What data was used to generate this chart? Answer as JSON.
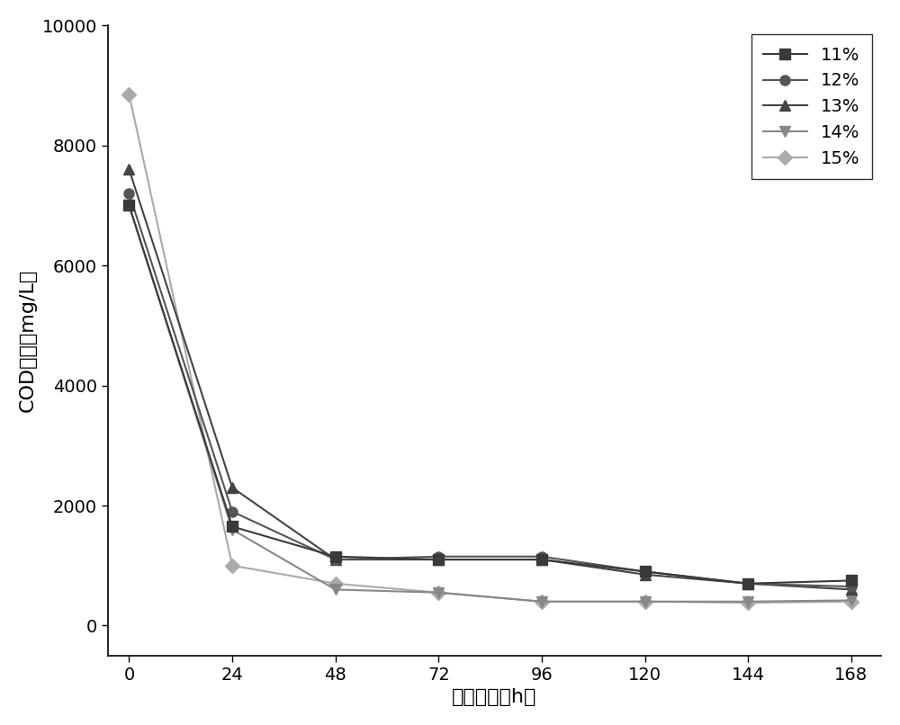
{
  "x": [
    0,
    24,
    48,
    72,
    96,
    120,
    144,
    168
  ],
  "series": [
    {
      "label": "11%",
      "values": [
        7000,
        1650,
        1150,
        1100,
        1100,
        900,
        700,
        750
      ],
      "color": "#3a3a3a",
      "marker": "s",
      "markersize": 8,
      "zorder": 5
    },
    {
      "label": "12%",
      "values": [
        7200,
        1900,
        1100,
        1150,
        1150,
        900,
        700,
        650
      ],
      "color": "#555555",
      "marker": "o",
      "markersize": 8,
      "zorder": 4
    },
    {
      "label": "13%",
      "values": [
        7600,
        2300,
        1100,
        1100,
        1100,
        850,
        700,
        600
      ],
      "color": "#444444",
      "marker": "^",
      "markersize": 9,
      "zorder": 3
    },
    {
      "label": "14%",
      "values": [
        7000,
        1600,
        600,
        550,
        400,
        400,
        400,
        420
      ],
      "color": "#888888",
      "marker": "v",
      "markersize": 9,
      "zorder": 2
    },
    {
      "label": "15%",
      "values": [
        8850,
        1000,
        700,
        550,
        400,
        400,
        380,
        400
      ],
      "color": "#aaaaaa",
      "marker": "D",
      "markersize": 8,
      "zorder": 1
    }
  ],
  "xlabel": "反应时间（h）",
  "ylabel": "COD浓度（mg/L）",
  "xlim": [
    -5,
    175
  ],
  "ylim": [
    -500,
    10000
  ],
  "yticks": [
    0,
    2000,
    4000,
    6000,
    8000,
    10000
  ],
  "xticks": [
    0,
    24,
    48,
    72,
    96,
    120,
    144,
    168
  ],
  "legend_loc": "upper right",
  "linewidth": 1.5,
  "font_size_label": 16,
  "font_size_tick": 14,
  "font_size_legend": 14,
  "background_color": "#ffffff",
  "figure_width": 10.0,
  "figure_height": 8.06
}
